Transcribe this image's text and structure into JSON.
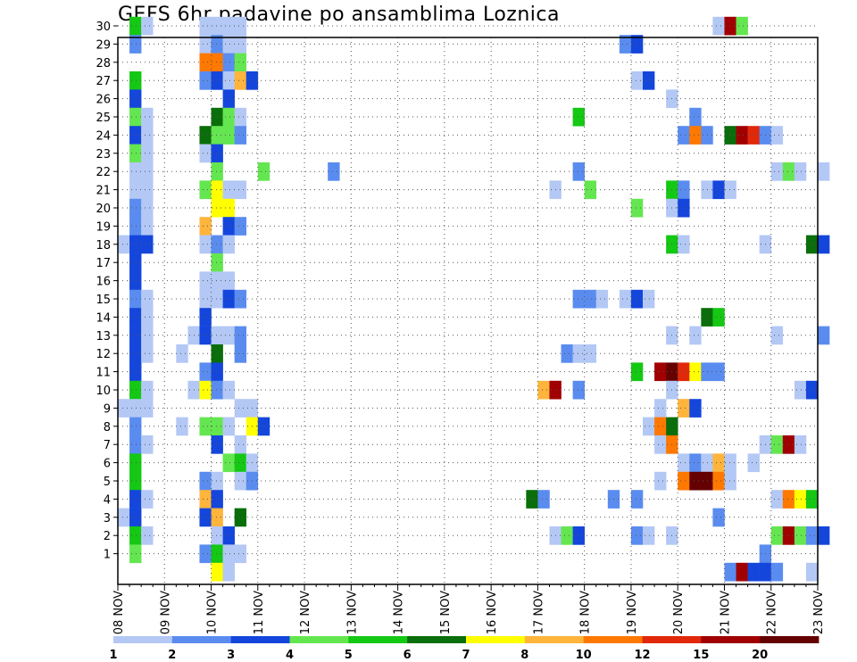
{
  "chart_data": {
    "type": "heatmap",
    "title": "GEFS 6hr padavine po ansamblima Loznica",
    "x_tick_labels": [
      "08 NOV",
      "09 NOV",
      "10 NOV",
      "11 NOV",
      "12 NOV",
      "13 NOV",
      "14 NOV",
      "15 NOV",
      "16 NOV",
      "17 NOV",
      "18 NOV",
      "19 NOV",
      "20 NOV",
      "21 NOV",
      "22 NOV",
      "23 NOV"
    ],
    "y_tick_labels": [
      "1",
      "2",
      "3",
      "4",
      "5",
      "6",
      "7",
      "8",
      "9",
      "10",
      "11",
      "12",
      "13",
      "14",
      "15",
      "16",
      "17",
      "18",
      "19",
      "20",
      "21",
      "22",
      "23",
      "24",
      "25",
      "26",
      "27",
      "28",
      "29",
      "30"
    ],
    "x_unit": "6-hour steps from 08 NOV",
    "y_unit": "ensemble member",
    "grid": true,
    "colorbar": {
      "ticks": [
        "1",
        "2",
        "3",
        "4",
        "5",
        "6",
        "7",
        "8",
        "10",
        "12",
        "15",
        "20"
      ],
      "colors": [
        "#b4c8f5",
        "#5a8cf0",
        "#1446dc",
        "#64e650",
        "#14c814",
        "#0a6e0a",
        "#ffff00",
        "#ffb43c",
        "#ff7800",
        "#e1280a",
        "#a00000",
        "#640000"
      ]
    },
    "cells": [
      {
        "m": 30,
        "t": 1,
        "c": 5
      },
      {
        "m": 30,
        "t": 2,
        "c": 1
      },
      {
        "m": 30,
        "t": 7,
        "c": 1
      },
      {
        "m": 30,
        "t": 8,
        "c": 1
      },
      {
        "m": 30,
        "t": 9,
        "c": 1
      },
      {
        "m": 30,
        "t": 10,
        "c": 1
      },
      {
        "m": 30,
        "t": 51,
        "c": 1
      },
      {
        "m": 30,
        "t": 52,
        "c": 11
      },
      {
        "m": 30,
        "t": 53,
        "c": 4
      },
      {
        "m": 29,
        "t": 1,
        "c": 2
      },
      {
        "m": 29,
        "t": 7,
        "c": 1
      },
      {
        "m": 29,
        "t": 8,
        "c": 2
      },
      {
        "m": 29,
        "t": 9,
        "c": 1
      },
      {
        "m": 29,
        "t": 10,
        "c": 1
      },
      {
        "m": 29,
        "t": 43,
        "c": 2
      },
      {
        "m": 29,
        "t": 44,
        "c": 3
      },
      {
        "m": 28,
        "t": 7,
        "c": 9
      },
      {
        "m": 28,
        "t": 8,
        "c": 9
      },
      {
        "m": 28,
        "t": 9,
        "c": 2
      },
      {
        "m": 28,
        "t": 10,
        "c": 4
      },
      {
        "m": 27,
        "t": 1,
        "c": 5
      },
      {
        "m": 27,
        "t": 7,
        "c": 2
      },
      {
        "m": 27,
        "t": 8,
        "c": 3
      },
      {
        "m": 27,
        "t": 9,
        "c": 1
      },
      {
        "m": 27,
        "t": 10,
        "c": 8
      },
      {
        "m": 27,
        "t": 11,
        "c": 3
      },
      {
        "m": 27,
        "t": 44,
        "c": 1
      },
      {
        "m": 27,
        "t": 45,
        "c": 3
      },
      {
        "m": 26,
        "t": 1,
        "c": 3
      },
      {
        "m": 26,
        "t": 9,
        "c": 3
      },
      {
        "m": 26,
        "t": 47,
        "c": 1
      },
      {
        "m": 25,
        "t": 1,
        "c": 4
      },
      {
        "m": 25,
        "t": 2,
        "c": 1
      },
      {
        "m": 25,
        "t": 8,
        "c": 6
      },
      {
        "m": 25,
        "t": 9,
        "c": 4
      },
      {
        "m": 25,
        "t": 10,
        "c": 1
      },
      {
        "m": 25,
        "t": 39,
        "c": 5
      },
      {
        "m": 25,
        "t": 49,
        "c": 2
      },
      {
        "m": 24,
        "t": 1,
        "c": 3
      },
      {
        "m": 24,
        "t": 2,
        "c": 1
      },
      {
        "m": 24,
        "t": 7,
        "c": 6
      },
      {
        "m": 24,
        "t": 8,
        "c": 4
      },
      {
        "m": 24,
        "t": 9,
        "c": 4
      },
      {
        "m": 24,
        "t": 10,
        "c": 2
      },
      {
        "m": 24,
        "t": 48,
        "c": 2
      },
      {
        "m": 24,
        "t": 49,
        "c": 9
      },
      {
        "m": 24,
        "t": 50,
        "c": 2
      },
      {
        "m": 24,
        "t": 52,
        "c": 6
      },
      {
        "m": 24,
        "t": 53,
        "c": 11
      },
      {
        "m": 24,
        "t": 54,
        "c": 10
      },
      {
        "m": 24,
        "t": 55,
        "c": 2
      },
      {
        "m": 24,
        "t": 56,
        "c": 1
      },
      {
        "m": 23,
        "t": 1,
        "c": 4
      },
      {
        "m": 23,
        "t": 2,
        "c": 1
      },
      {
        "m": 23,
        "t": 7,
        "c": 1
      },
      {
        "m": 23,
        "t": 8,
        "c": 3
      },
      {
        "m": 22,
        "t": 1,
        "c": 1
      },
      {
        "m": 22,
        "t": 2,
        "c": 1
      },
      {
        "m": 22,
        "t": 8,
        "c": 4
      },
      {
        "m": 22,
        "t": 12,
        "c": 4
      },
      {
        "m": 22,
        "t": 18,
        "c": 2
      },
      {
        "m": 22,
        "t": 39,
        "c": 2
      },
      {
        "m": 22,
        "t": 56,
        "c": 1
      },
      {
        "m": 22,
        "t": 57,
        "c": 4
      },
      {
        "m": 22,
        "t": 58,
        "c": 1
      },
      {
        "m": 22,
        "t": 60,
        "c": 1
      },
      {
        "m": 21,
        "t": 1,
        "c": 1
      },
      {
        "m": 21,
        "t": 2,
        "c": 1
      },
      {
        "m": 21,
        "t": 7,
        "c": 4
      },
      {
        "m": 21,
        "t": 8,
        "c": 7
      },
      {
        "m": 21,
        "t": 9,
        "c": 1
      },
      {
        "m": 21,
        "t": 10,
        "c": 1
      },
      {
        "m": 21,
        "t": 37,
        "c": 1
      },
      {
        "m": 21,
        "t": 40,
        "c": 4
      },
      {
        "m": 21,
        "t": 47,
        "c": 5
      },
      {
        "m": 21,
        "t": 48,
        "c": 2
      },
      {
        "m": 21,
        "t": 50,
        "c": 1
      },
      {
        "m": 21,
        "t": 51,
        "c": 3
      },
      {
        "m": 21,
        "t": 52,
        "c": 1
      },
      {
        "m": 20,
        "t": 1,
        "c": 2
      },
      {
        "m": 20,
        "t": 2,
        "c": 1
      },
      {
        "m": 20,
        "t": 8,
        "c": 7
      },
      {
        "m": 20,
        "t": 9,
        "c": 7
      },
      {
        "m": 20,
        "t": 44,
        "c": 4
      },
      {
        "m": 20,
        "t": 47,
        "c": 1
      },
      {
        "m": 20,
        "t": 48,
        "c": 3
      },
      {
        "m": 19,
        "t": 1,
        "c": 2
      },
      {
        "m": 19,
        "t": 2,
        "c": 1
      },
      {
        "m": 19,
        "t": 7,
        "c": 8
      },
      {
        "m": 19,
        "t": 9,
        "c": 3
      },
      {
        "m": 19,
        "t": 10,
        "c": 2
      },
      {
        "m": 18,
        "t": 0,
        "c": 1
      },
      {
        "m": 18,
        "t": 1,
        "c": 3
      },
      {
        "m": 18,
        "t": 2,
        "c": 3
      },
      {
        "m": 18,
        "t": 7,
        "c": 1
      },
      {
        "m": 18,
        "t": 8,
        "c": 2
      },
      {
        "m": 18,
        "t": 9,
        "c": 1
      },
      {
        "m": 18,
        "t": 47,
        "c": 5
      },
      {
        "m": 18,
        "t": 48,
        "c": 1
      },
      {
        "m": 18,
        "t": 55,
        "c": 1
      },
      {
        "m": 18,
        "t": 59,
        "c": 6
      },
      {
        "m": 18,
        "t": 60,
        "c": 3
      },
      {
        "m": 17,
        "t": 1,
        "c": 3
      },
      {
        "m": 17,
        "t": 8,
        "c": 4
      },
      {
        "m": 16,
        "t": 1,
        "c": 3
      },
      {
        "m": 16,
        "t": 7,
        "c": 1
      },
      {
        "m": 16,
        "t": 8,
        "c": 1
      },
      {
        "m": 16,
        "t": 9,
        "c": 1
      },
      {
        "m": 15,
        "t": 1,
        "c": 2
      },
      {
        "m": 15,
        "t": 2,
        "c": 1
      },
      {
        "m": 15,
        "t": 7,
        "c": 1
      },
      {
        "m": 15,
        "t": 8,
        "c": 1
      },
      {
        "m": 15,
        "t": 9,
        "c": 3
      },
      {
        "m": 15,
        "t": 10,
        "c": 2
      },
      {
        "m": 15,
        "t": 39,
        "c": 2
      },
      {
        "m": 15,
        "t": 40,
        "c": 2
      },
      {
        "m": 15,
        "t": 41,
        "c": 1
      },
      {
        "m": 15,
        "t": 43,
        "c": 1
      },
      {
        "m": 15,
        "t": 44,
        "c": 3
      },
      {
        "m": 15,
        "t": 45,
        "c": 1
      },
      {
        "m": 14,
        "t": 1,
        "c": 3
      },
      {
        "m": 14,
        "t": 2,
        "c": 1
      },
      {
        "m": 14,
        "t": 7,
        "c": 3
      },
      {
        "m": 14,
        "t": 50,
        "c": 6
      },
      {
        "m": 14,
        "t": 51,
        "c": 5
      },
      {
        "m": 13,
        "t": 1,
        "c": 3
      },
      {
        "m": 13,
        "t": 2,
        "c": 1
      },
      {
        "m": 13,
        "t": 6,
        "c": 1
      },
      {
        "m": 13,
        "t": 7,
        "c": 3
      },
      {
        "m": 13,
        "t": 8,
        "c": 1
      },
      {
        "m": 13,
        "t": 9,
        "c": 1
      },
      {
        "m": 13,
        "t": 10,
        "c": 2
      },
      {
        "m": 13,
        "t": 47,
        "c": 1
      },
      {
        "m": 13,
        "t": 49,
        "c": 1
      },
      {
        "m": 13,
        "t": 56,
        "c": 1
      },
      {
        "m": 13,
        "t": 60,
        "c": 2
      },
      {
        "m": 12,
        "t": 1,
        "c": 3
      },
      {
        "m": 12,
        "t": 2,
        "c": 1
      },
      {
        "m": 12,
        "t": 5,
        "c": 1
      },
      {
        "m": 12,
        "t": 8,
        "c": 6
      },
      {
        "m": 12,
        "t": 10,
        "c": 2
      },
      {
        "m": 12,
        "t": 38,
        "c": 2
      },
      {
        "m": 12,
        "t": 39,
        "c": 1
      },
      {
        "m": 12,
        "t": 40,
        "c": 1
      },
      {
        "m": 11,
        "t": 1,
        "c": 3
      },
      {
        "m": 11,
        "t": 7,
        "c": 2
      },
      {
        "m": 11,
        "t": 8,
        "c": 3
      },
      {
        "m": 11,
        "t": 44,
        "c": 5
      },
      {
        "m": 11,
        "t": 46,
        "c": 11
      },
      {
        "m": 11,
        "t": 47,
        "c": 12
      },
      {
        "m": 11,
        "t": 48,
        "c": 10
      },
      {
        "m": 11,
        "t": 49,
        "c": 7
      },
      {
        "m": 11,
        "t": 50,
        "c": 2
      },
      {
        "m": 11,
        "t": 51,
        "c": 2
      },
      {
        "m": 10,
        "t": 1,
        "c": 5
      },
      {
        "m": 10,
        "t": 2,
        "c": 1
      },
      {
        "m": 10,
        "t": 6,
        "c": 1
      },
      {
        "m": 10,
        "t": 7,
        "c": 7
      },
      {
        "m": 10,
        "t": 8,
        "c": 2
      },
      {
        "m": 10,
        "t": 9,
        "c": 1
      },
      {
        "m": 10,
        "t": 36,
        "c": 8
      },
      {
        "m": 10,
        "t": 37,
        "c": 11
      },
      {
        "m": 10,
        "t": 39,
        "c": 2
      },
      {
        "m": 10,
        "t": 47,
        "c": 1
      },
      {
        "m": 10,
        "t": 58,
        "c": 1
      },
      {
        "m": 10,
        "t": 59,
        "c": 3
      },
      {
        "m": 9,
        "t": 0,
        "c": 1
      },
      {
        "m": 9,
        "t": 1,
        "c": 1
      },
      {
        "m": 9,
        "t": 2,
        "c": 1
      },
      {
        "m": 9,
        "t": 10,
        "c": 1
      },
      {
        "m": 9,
        "t": 11,
        "c": 1
      },
      {
        "m": 9,
        "t": 46,
        "c": 1
      },
      {
        "m": 9,
        "t": 48,
        "c": 8
      },
      {
        "m": 9,
        "t": 49,
        "c": 3
      },
      {
        "m": 8,
        "t": 1,
        "c": 2
      },
      {
        "m": 8,
        "t": 5,
        "c": 1
      },
      {
        "m": 8,
        "t": 7,
        "c": 4
      },
      {
        "m": 8,
        "t": 8,
        "c": 4
      },
      {
        "m": 8,
        "t": 9,
        "c": 1
      },
      {
        "m": 8,
        "t": 11,
        "c": 7
      },
      {
        "m": 8,
        "t": 12,
        "c": 3
      },
      {
        "m": 8,
        "t": 45,
        "c": 1
      },
      {
        "m": 8,
        "t": 46,
        "c": 9
      },
      {
        "m": 8,
        "t": 47,
        "c": 6
      },
      {
        "m": 7,
        "t": 1,
        "c": 2
      },
      {
        "m": 7,
        "t": 2,
        "c": 1
      },
      {
        "m": 7,
        "t": 8,
        "c": 3
      },
      {
        "m": 7,
        "t": 10,
        "c": 1
      },
      {
        "m": 7,
        "t": 46,
        "c": 1
      },
      {
        "m": 7,
        "t": 47,
        "c": 9
      },
      {
        "m": 7,
        "t": 55,
        "c": 1
      },
      {
        "m": 7,
        "t": 56,
        "c": 4
      },
      {
        "m": 7,
        "t": 57,
        "c": 11
      },
      {
        "m": 7,
        "t": 58,
        "c": 1
      },
      {
        "m": 6,
        "t": 1,
        "c": 5
      },
      {
        "m": 6,
        "t": 9,
        "c": 4
      },
      {
        "m": 6,
        "t": 10,
        "c": 5
      },
      {
        "m": 6,
        "t": 11,
        "c": 1
      },
      {
        "m": 6,
        "t": 48,
        "c": 1
      },
      {
        "m": 6,
        "t": 49,
        "c": 2
      },
      {
        "m": 6,
        "t": 50,
        "c": 1
      },
      {
        "m": 6,
        "t": 51,
        "c": 8
      },
      {
        "m": 6,
        "t": 52,
        "c": 1
      },
      {
        "m": 6,
        "t": 54,
        "c": 1
      },
      {
        "m": 5,
        "t": 1,
        "c": 5
      },
      {
        "m": 5,
        "t": 7,
        "c": 2
      },
      {
        "m": 5,
        "t": 8,
        "c": 1
      },
      {
        "m": 5,
        "t": 10,
        "c": 1
      },
      {
        "m": 5,
        "t": 11,
        "c": 2
      },
      {
        "m": 5,
        "t": 46,
        "c": 1
      },
      {
        "m": 5,
        "t": 48,
        "c": 9
      },
      {
        "m": 5,
        "t": 49,
        "c": 12
      },
      {
        "m": 5,
        "t": 50,
        "c": 12
      },
      {
        "m": 5,
        "t": 51,
        "c": 9
      },
      {
        "m": 5,
        "t": 52,
        "c": 1
      },
      {
        "m": 4,
        "t": 1,
        "c": 3
      },
      {
        "m": 4,
        "t": 2,
        "c": 1
      },
      {
        "m": 4,
        "t": 7,
        "c": 8
      },
      {
        "m": 4,
        "t": 8,
        "c": 3
      },
      {
        "m": 4,
        "t": 35,
        "c": 6
      },
      {
        "m": 4,
        "t": 36,
        "c": 2
      },
      {
        "m": 4,
        "t": 42,
        "c": 2
      },
      {
        "m": 4,
        "t": 44,
        "c": 2
      },
      {
        "m": 4,
        "t": 56,
        "c": 1
      },
      {
        "m": 4,
        "t": 57,
        "c": 9
      },
      {
        "m": 4,
        "t": 58,
        "c": 7
      },
      {
        "m": 4,
        "t": 59,
        "c": 5
      },
      {
        "m": 3,
        "t": 0,
        "c": 1
      },
      {
        "m": 3,
        "t": 1,
        "c": 3
      },
      {
        "m": 3,
        "t": 7,
        "c": 3
      },
      {
        "m": 3,
        "t": 8,
        "c": 8
      },
      {
        "m": 3,
        "t": 10,
        "c": 6
      },
      {
        "m": 3,
        "t": 51,
        "c": 2
      },
      {
        "m": 2,
        "t": 1,
        "c": 5
      },
      {
        "m": 2,
        "t": 2,
        "c": 1
      },
      {
        "m": 2,
        "t": 8,
        "c": 1
      },
      {
        "m": 2,
        "t": 9,
        "c": 3
      },
      {
        "m": 2,
        "t": 37,
        "c": 1
      },
      {
        "m": 2,
        "t": 38,
        "c": 4
      },
      {
        "m": 2,
        "t": 39,
        "c": 3
      },
      {
        "m": 2,
        "t": 44,
        "c": 2
      },
      {
        "m": 2,
        "t": 45,
        "c": 1
      },
      {
        "m": 2,
        "t": 47,
        "c": 1
      },
      {
        "m": 2,
        "t": 56,
        "c": 4
      },
      {
        "m": 2,
        "t": 57,
        "c": 11
      },
      {
        "m": 2,
        "t": 58,
        "c": 4
      },
      {
        "m": 2,
        "t": 59,
        "c": 2
      },
      {
        "m": 2,
        "t": 60,
        "c": 3
      },
      {
        "m": 1,
        "t": 1,
        "c": 4
      },
      {
        "m": 1,
        "t": 7,
        "c": 2
      },
      {
        "m": 1,
        "t": 8,
        "c": 5
      },
      {
        "m": 1,
        "t": 9,
        "c": 1
      },
      {
        "m": 1,
        "t": 10,
        "c": 1
      },
      {
        "m": 1,
        "t": 55,
        "c": 2
      },
      {
        "m": 0,
        "t": 8,
        "c": 7
      },
      {
        "m": 0,
        "t": 9,
        "c": 1
      },
      {
        "m": 0,
        "t": 52,
        "c": 2
      },
      {
        "m": 0,
        "t": 53,
        "c": 11
      },
      {
        "m": 0,
        "t": 54,
        "c": 3
      },
      {
        "m": 0,
        "t": 55,
        "c": 3
      },
      {
        "m": 0,
        "t": 56,
        "c": 2
      },
      {
        "m": 0,
        "t": 59,
        "c": 1
      }
    ]
  }
}
